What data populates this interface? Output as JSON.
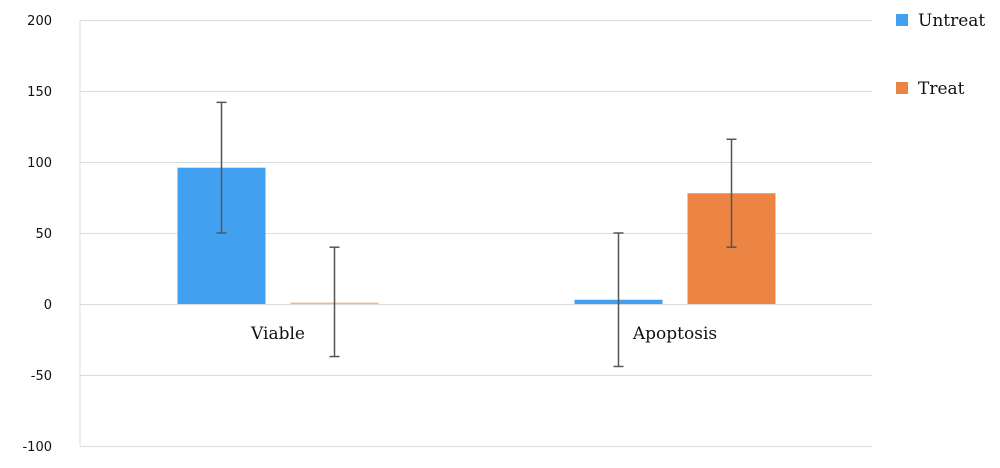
{
  "chart_data": {
    "type": "bar",
    "categories": [
      "Viable",
      "Apoptosis"
    ],
    "series": [
      {
        "name": "Untreat",
        "color": "#42a0f0",
        "values": [
          96,
          3
        ],
        "error_low": [
          50,
          -44
        ],
        "error_high": [
          142,
          50
        ]
      },
      {
        "name": "Treat",
        "color": "#ec8444",
        "values": [
          1,
          78
        ],
        "error_low": [
          -37,
          40
        ],
        "error_high": [
          40,
          116
        ]
      }
    ],
    "ylim": [
      -100,
      200
    ],
    "yticks": [
      "200",
      "150",
      "100",
      "50",
      "0",
      "-50",
      "-100"
    ],
    "ytick_values": [
      200,
      150,
      100,
      50,
      0,
      -50,
      -100
    ],
    "grid": true,
    "legend_position": "right"
  }
}
